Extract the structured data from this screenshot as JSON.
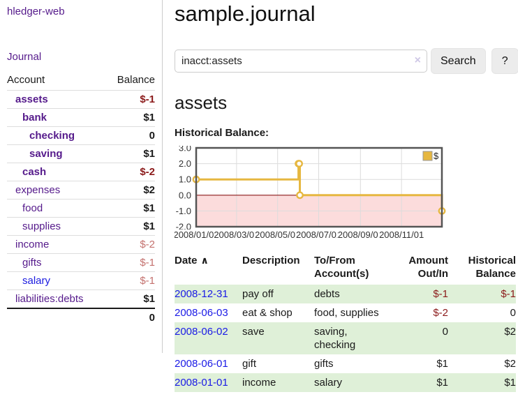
{
  "app": {
    "brand": "hledger-web"
  },
  "sidebar": {
    "journal_link": "Journal",
    "accounts_table": {
      "headers": {
        "account": "Account",
        "balance": "Balance"
      },
      "rows": [
        {
          "name": "assets",
          "balance": "$-1",
          "depth": 0,
          "bold": true,
          "neg": "strong"
        },
        {
          "name": "bank",
          "balance": "$1",
          "depth": 1,
          "bold": true,
          "neg": "none"
        },
        {
          "name": "checking",
          "balance": "0",
          "depth": 2,
          "bold": true,
          "neg": "none"
        },
        {
          "name": "saving",
          "balance": "$1",
          "depth": 2,
          "bold": true,
          "neg": "none"
        },
        {
          "name": "cash",
          "balance": "$-2",
          "depth": 1,
          "bold": true,
          "neg": "strong"
        },
        {
          "name": "expenses",
          "balance": "$2",
          "depth": 0,
          "bold": false,
          "neg": "none"
        },
        {
          "name": "food",
          "balance": "$1",
          "depth": 1,
          "bold": false,
          "neg": "none"
        },
        {
          "name": "supplies",
          "balance": "$1",
          "depth": 1,
          "bold": false,
          "neg": "none"
        },
        {
          "name": "income",
          "balance": "$-2",
          "depth": 0,
          "bold": false,
          "neg": "soft"
        },
        {
          "name": "gifts",
          "balance": "$-1",
          "depth": 1,
          "bold": false,
          "neg": "soft"
        },
        {
          "name": "salary",
          "balance": "$-1",
          "depth": 1,
          "bold": false,
          "neg": "soft",
          "link_color": "blue"
        },
        {
          "name": "liabilities:debts",
          "balance": "$1",
          "depth": 0,
          "bold": false,
          "neg": "none"
        }
      ],
      "total": "0"
    }
  },
  "header": {
    "title": "sample.journal"
  },
  "search": {
    "value": "inacct:assets",
    "clear_icon": "×",
    "search_button": "Search",
    "help_button": "?"
  },
  "account_view": {
    "heading": "assets",
    "chart_title": "Historical Balance:"
  },
  "chart_data": {
    "type": "line",
    "step": true,
    "title": "Historical Balance",
    "ylim": [
      -2,
      3
    ],
    "yticks": [
      3.0,
      2.0,
      1.0,
      0.0,
      -1.0,
      -2.0
    ],
    "xlim_days": [
      0,
      365
    ],
    "xticks": [
      {
        "label": "2008/01/01",
        "day": 0
      },
      {
        "label": "2008/03/01",
        "day": 60
      },
      {
        "label": "2008/05/01",
        "day": 121
      },
      {
        "label": "2008/07/01",
        "day": 182
      },
      {
        "label": "2008/09/01",
        "day": 244
      },
      {
        "label": "2008/11/01",
        "day": 305
      }
    ],
    "legend": {
      "label": "$",
      "position": "top-right"
    },
    "series": [
      {
        "name": "$",
        "color": "#e6b740",
        "points": [
          {
            "date": "2008-01-01",
            "day": 0,
            "value": 1
          },
          {
            "date": "2008-06-01",
            "day": 152,
            "value": 2
          },
          {
            "date": "2008-06-02",
            "day": 153,
            "value": 2
          },
          {
            "date": "2008-06-03",
            "day": 154,
            "value": 0
          },
          {
            "date": "2008-12-31",
            "day": 365,
            "value": -1
          }
        ]
      }
    ],
    "grid": true,
    "negative_region_fill": "#fcdcdc",
    "zero_line_color": "#8b1a1a",
    "plot_border_color": "#545454",
    "gridline_color": "#dcdcdc"
  },
  "register": {
    "sort_icon": "∧",
    "columns": [
      {
        "label": "Date"
      },
      {
        "label": "Description"
      },
      {
        "label": "To/From\nAccount(s)"
      },
      {
        "label": "Amount\nOut/In"
      },
      {
        "label": "Historical\nBalance"
      }
    ],
    "rows": [
      {
        "date": "2008-12-31",
        "description": "pay off",
        "accounts": "debts",
        "amount": "$-1",
        "amount_negative": true,
        "balance": "$-1",
        "balance_negative": true,
        "highlight": true
      },
      {
        "date": "2008-06-03",
        "description": "eat & shop",
        "accounts": "food, supplies",
        "amount": "$-2",
        "amount_negative": true,
        "balance": "0",
        "balance_negative": false,
        "highlight": false
      },
      {
        "date": "2008-06-02",
        "description": "save",
        "accounts": "saving,\nchecking",
        "amount": "0",
        "amount_negative": false,
        "balance": "$2",
        "balance_negative": false,
        "highlight": true
      },
      {
        "date": "2008-06-01",
        "description": "gift",
        "accounts": "gifts",
        "amount": "$1",
        "amount_negative": false,
        "balance": "$2",
        "balance_negative": false,
        "highlight": false
      },
      {
        "date": "2008-01-01",
        "description": "income",
        "accounts": "salary",
        "amount": "$1",
        "amount_negative": false,
        "balance": "$1",
        "balance_negative": false,
        "highlight": true
      }
    ]
  },
  "colors": {
    "link_purple": "#551a8b",
    "link_blue": "#1a1ae6",
    "negative_strong": "#8b1a1a",
    "negative_soft": "#c4716e",
    "row_highlight_green": "#dff0d8",
    "chart_line_gold": "#e6b740",
    "chart_negative_pink": "#fcdcdc",
    "chart_zero_line": "#8b1a1a"
  }
}
